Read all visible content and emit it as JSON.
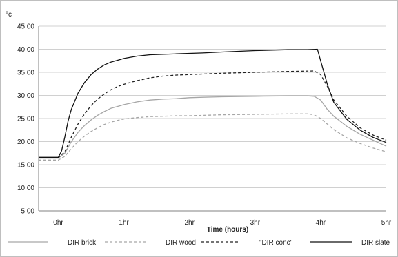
{
  "chart_data": {
    "type": "line",
    "unit_label": "°c",
    "xlabel": "Time (hours)",
    "ylabel": "",
    "xlim": [
      -0.3,
      5.0
    ],
    "ylim": [
      5,
      45
    ],
    "y_ticks": [
      "5.00",
      "10.00",
      "15.00",
      "20.00",
      "25.00",
      "30.00",
      "35.00",
      "40.00",
      "45.00"
    ],
    "x_ticks": [
      {
        "value": 0,
        "label": "0hr"
      },
      {
        "value": 1,
        "label": "1hr"
      },
      {
        "value": 2,
        "label": "2hr"
      },
      {
        "value": 3,
        "label": "3hr"
      },
      {
        "value": 4,
        "label": "4hr"
      },
      {
        "value": 5,
        "label": "5hr"
      }
    ],
    "grid": "horizontal",
    "legend": "bottom",
    "series": [
      {
        "name": "DIR brick",
        "color": "#a6a6a6",
        "dash": "solid",
        "points": [
          [
            -0.3,
            16.4
          ],
          [
            0.0,
            16.4
          ],
          [
            0.1,
            17.5
          ],
          [
            0.2,
            20.0
          ],
          [
            0.3,
            22.0
          ],
          [
            0.4,
            23.5
          ],
          [
            0.5,
            24.7
          ],
          [
            0.6,
            25.7
          ],
          [
            0.7,
            26.5
          ],
          [
            0.8,
            27.2
          ],
          [
            0.9,
            27.6
          ],
          [
            1.0,
            28.0
          ],
          [
            1.2,
            28.6
          ],
          [
            1.4,
            29.0
          ],
          [
            1.6,
            29.2
          ],
          [
            1.8,
            29.3
          ],
          [
            2.0,
            29.5
          ],
          [
            2.2,
            29.6
          ],
          [
            2.5,
            29.7
          ],
          [
            3.0,
            29.8
          ],
          [
            3.5,
            29.9
          ],
          [
            3.8,
            29.9
          ],
          [
            3.9,
            29.8
          ],
          [
            4.0,
            29.0
          ],
          [
            4.1,
            27.0
          ],
          [
            4.2,
            25.5
          ],
          [
            4.4,
            23.3
          ],
          [
            4.6,
            21.6
          ],
          [
            4.8,
            20.3
          ],
          [
            5.0,
            19.0
          ]
        ]
      },
      {
        "name": "DIR wood",
        "color": "#a6a6a6",
        "dash": "dashed",
        "points": [
          [
            -0.3,
            16.0
          ],
          [
            0.0,
            16.0
          ],
          [
            0.1,
            16.8
          ],
          [
            0.2,
            18.5
          ],
          [
            0.3,
            20.0
          ],
          [
            0.4,
            21.2
          ],
          [
            0.5,
            22.2
          ],
          [
            0.6,
            23.0
          ],
          [
            0.7,
            23.7
          ],
          [
            0.8,
            24.2
          ],
          [
            0.9,
            24.6
          ],
          [
            1.0,
            24.9
          ],
          [
            1.2,
            25.2
          ],
          [
            1.4,
            25.4
          ],
          [
            1.6,
            25.5
          ],
          [
            1.8,
            25.6
          ],
          [
            2.0,
            25.6
          ],
          [
            2.5,
            25.8
          ],
          [
            3.0,
            25.9
          ],
          [
            3.5,
            26.0
          ],
          [
            3.8,
            26.0
          ],
          [
            3.9,
            25.8
          ],
          [
            4.0,
            25.0
          ],
          [
            4.1,
            23.8
          ],
          [
            4.2,
            22.6
          ],
          [
            4.4,
            20.8
          ],
          [
            4.6,
            19.6
          ],
          [
            4.8,
            18.6
          ],
          [
            5.0,
            17.8
          ]
        ]
      },
      {
        "name": "\"DIR conc\"",
        "color": "#222222",
        "dash": "dashed",
        "points": [
          [
            -0.3,
            16.5
          ],
          [
            0.0,
            16.5
          ],
          [
            0.1,
            17.8
          ],
          [
            0.2,
            21.0
          ],
          [
            0.3,
            23.8
          ],
          [
            0.4,
            26.0
          ],
          [
            0.5,
            27.8
          ],
          [
            0.6,
            29.2
          ],
          [
            0.7,
            30.3
          ],
          [
            0.8,
            31.2
          ],
          [
            0.9,
            31.9
          ],
          [
            1.0,
            32.4
          ],
          [
            1.2,
            33.2
          ],
          [
            1.4,
            33.8
          ],
          [
            1.6,
            34.2
          ],
          [
            1.8,
            34.4
          ],
          [
            2.0,
            34.5
          ],
          [
            2.5,
            34.8
          ],
          [
            3.0,
            35.0
          ],
          [
            3.5,
            35.2
          ],
          [
            3.9,
            35.3
          ],
          [
            4.0,
            34.5
          ],
          [
            4.1,
            32.0
          ],
          [
            4.2,
            29.0
          ],
          [
            4.4,
            25.5
          ],
          [
            4.6,
            23.0
          ],
          [
            4.8,
            21.4
          ],
          [
            5.0,
            20.3
          ]
        ]
      },
      {
        "name": "DIR slate",
        "color": "#111111",
        "dash": "solid",
        "points": [
          [
            -0.3,
            16.6
          ],
          [
            0.0,
            16.6
          ],
          [
            0.05,
            18.0
          ],
          [
            0.1,
            21.0
          ],
          [
            0.15,
            24.5
          ],
          [
            0.2,
            27.0
          ],
          [
            0.3,
            30.5
          ],
          [
            0.4,
            32.8
          ],
          [
            0.5,
            34.5
          ],
          [
            0.6,
            35.7
          ],
          [
            0.7,
            36.6
          ],
          [
            0.8,
            37.2
          ],
          [
            0.9,
            37.6
          ],
          [
            1.0,
            38.0
          ],
          [
            1.2,
            38.5
          ],
          [
            1.4,
            38.8
          ],
          [
            1.6,
            38.9
          ],
          [
            1.8,
            39.0
          ],
          [
            2.0,
            39.1
          ],
          [
            2.2,
            39.2
          ],
          [
            2.5,
            39.4
          ],
          [
            3.0,
            39.7
          ],
          [
            3.5,
            39.9
          ],
          [
            3.8,
            39.9
          ],
          [
            3.95,
            40.0
          ],
          [
            4.0,
            37.5
          ],
          [
            4.1,
            32.5
          ],
          [
            4.2,
            28.5
          ],
          [
            4.4,
            24.8
          ],
          [
            4.6,
            22.5
          ],
          [
            4.8,
            20.9
          ],
          [
            5.0,
            19.8
          ]
        ]
      }
    ]
  }
}
